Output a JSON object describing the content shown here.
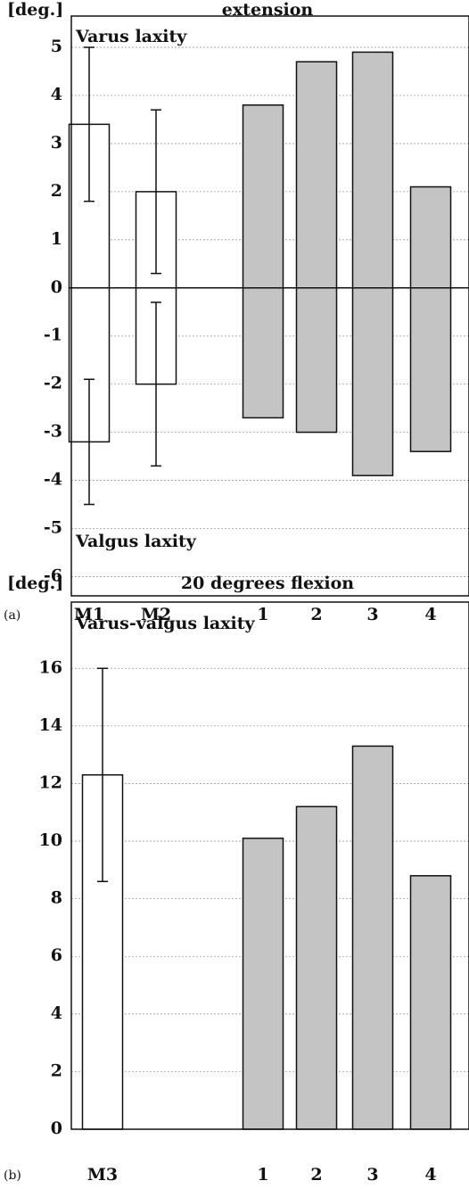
{
  "chart_data": [
    {
      "type": "bar",
      "panel_label": "(a)",
      "title": "extension",
      "ylabel": "[deg.]",
      "categories": [
        "M1",
        "M2",
        "1",
        "2",
        "3",
        "4"
      ],
      "series": [
        {
          "name": "Varus laxity",
          "colors": [
            "#ffffff",
            "#ffffff",
            "#c4c4c4",
            "#c4c4c4",
            "#c4c4c4",
            "#c4c4c4"
          ],
          "values": [
            3.4,
            2.0,
            3.8,
            4.7,
            4.9,
            2.1
          ],
          "errors": [
            1.6,
            1.7,
            null,
            null,
            null,
            null
          ]
        },
        {
          "name": "Valgus laxity",
          "colors": [
            "#ffffff",
            "#ffffff",
            "#c4c4c4",
            "#c4c4c4",
            "#c4c4c4",
            "#c4c4c4"
          ],
          "values": [
            -3.2,
            -2.0,
            -2.7,
            -3.0,
            -3.9,
            -3.4
          ],
          "errors": [
            1.3,
            1.7,
            null,
            null,
            null,
            null
          ]
        }
      ],
      "ylim": [
        -6.4,
        5.65
      ],
      "yticks": [
        -6,
        -5,
        -4,
        -3,
        -2,
        -1,
        0,
        1,
        2,
        3,
        4,
        5
      ],
      "grid": true
    },
    {
      "type": "bar",
      "panel_label": "(b)",
      "title": "20 degrees flexion",
      "ylabel": "[deg.]",
      "categories": [
        "M3",
        "1",
        "2",
        "3",
        "4"
      ],
      "series": [
        {
          "name": "Varus-valgus laxity",
          "colors": [
            "#ffffff",
            "#c4c4c4",
            "#c4c4c4",
            "#c4c4c4",
            "#c4c4c4"
          ],
          "values": [
            12.3,
            10.1,
            11.2,
            13.3,
            8.8
          ],
          "errors": [
            3.7,
            null,
            null,
            null,
            null
          ]
        }
      ],
      "ylim": [
        0,
        18.3
      ],
      "yticks": [
        0,
        2,
        4,
        6,
        8,
        10,
        12,
        14,
        16
      ],
      "grid": true
    }
  ]
}
